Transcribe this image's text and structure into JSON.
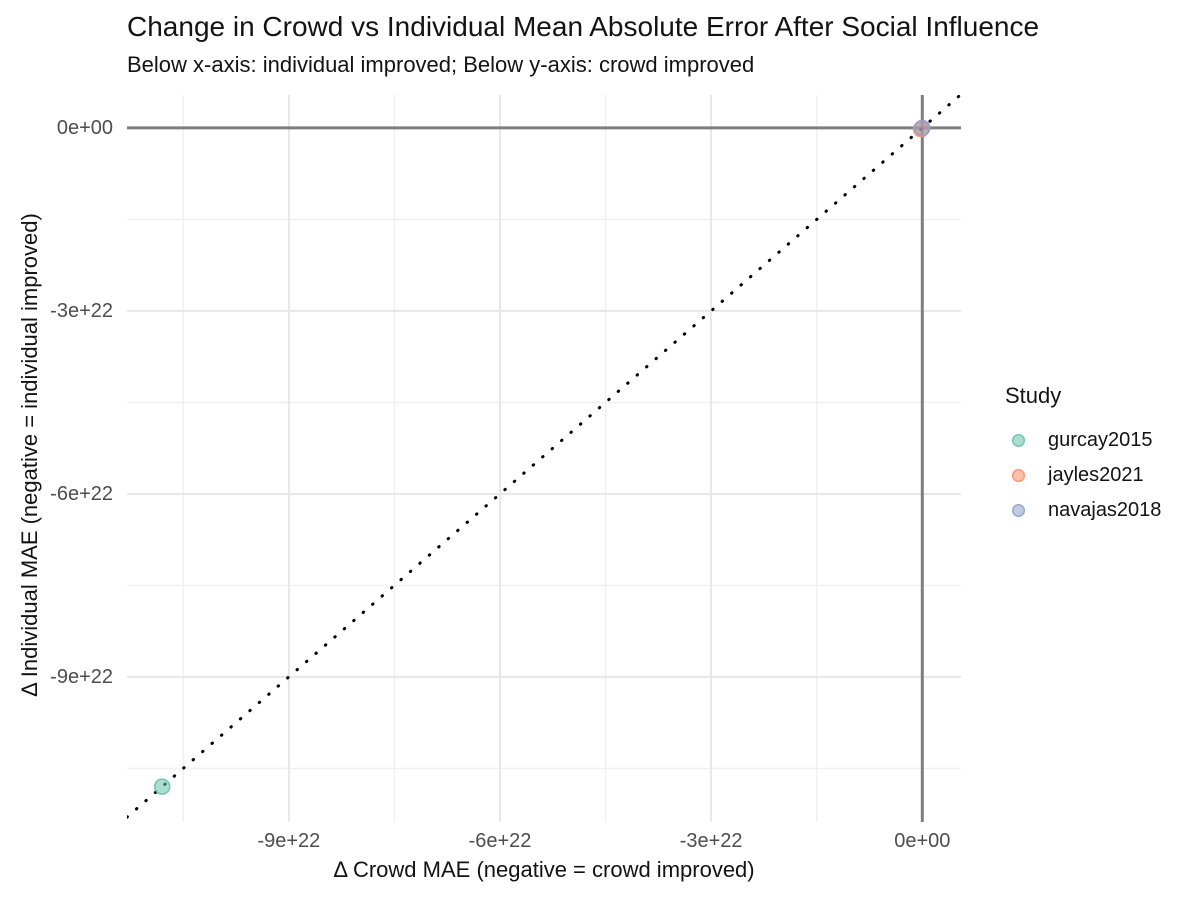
{
  "title": "Change in Crowd vs Individual Mean Absolute Error After Social Influence",
  "subtitle": "Below x-axis: individual improved; Below y-axis: crowd improved",
  "legend": {
    "title": "Study",
    "items": [
      {
        "label": "gurcay2015",
        "color": "#66C2A5"
      },
      {
        "label": "jayles2021",
        "color": "#FC8D62"
      },
      {
        "label": "navajas2018",
        "color": "#8DA0CB"
      }
    ]
  },
  "chart_data": {
    "type": "scatter",
    "title": "Change in Crowd vs Individual Mean Absolute Error After Social Influence",
    "subtitle": "Below x-axis: individual improved; Below y-axis: crowd improved",
    "xlabel": "Δ Crowd MAE (negative = crowd improved)",
    "ylabel": "Δ Individual MAE (negative = individual improved)",
    "xlim": [
      -1.13e+23,
      5.5e+21
    ],
    "ylim": [
      -1.138e+23,
      5.4e+21
    ],
    "x_ticks": [
      {
        "value": -9e+22,
        "label": "-9e+22"
      },
      {
        "value": -6e+22,
        "label": "-6e+22"
      },
      {
        "value": -3e+22,
        "label": "-3e+22"
      },
      {
        "value": 0,
        "label": "0e+00"
      }
    ],
    "y_ticks": [
      {
        "value": 0,
        "label": "0e+00"
      },
      {
        "value": -3e+22,
        "label": "-3e+22"
      },
      {
        "value": -6e+22,
        "label": "-6e+22"
      },
      {
        "value": -9e+22,
        "label": "-9e+22"
      }
    ],
    "x_minor": [
      -1.05e+23,
      -7.5e+22,
      -4.5e+22,
      -1.5e+22
    ],
    "y_minor": [
      -1.05e+23,
      -7.5e+22,
      -4.5e+22,
      -1.5e+22
    ],
    "grid": true,
    "legend_position": "right",
    "reference_lines": {
      "hline_y": 0,
      "vline_x": 0,
      "identity_line": "dotted y = x"
    },
    "series": [
      {
        "name": "gurcay2015",
        "color": "#66C2A5",
        "points": [
          {
            "x": -1.08e+23,
            "y": -1.08e+23
          }
        ]
      },
      {
        "name": "jayles2021",
        "color": "#FC8D62",
        "points": [
          {
            "x": 0,
            "y": 0
          }
        ]
      },
      {
        "name": "navajas2018",
        "color": "#8DA0CB",
        "points": [
          {
            "x": 0,
            "y": 0
          }
        ]
      }
    ],
    "style": {
      "grid_major_color": "#E7E7E7",
      "grid_minor_color": "#F0F0F0",
      "zero_line_color": "#7E7E7E",
      "identity_line_color": "#000000",
      "tick_label_color": "#4D4D4D",
      "point_radius": 7.5
    }
  }
}
